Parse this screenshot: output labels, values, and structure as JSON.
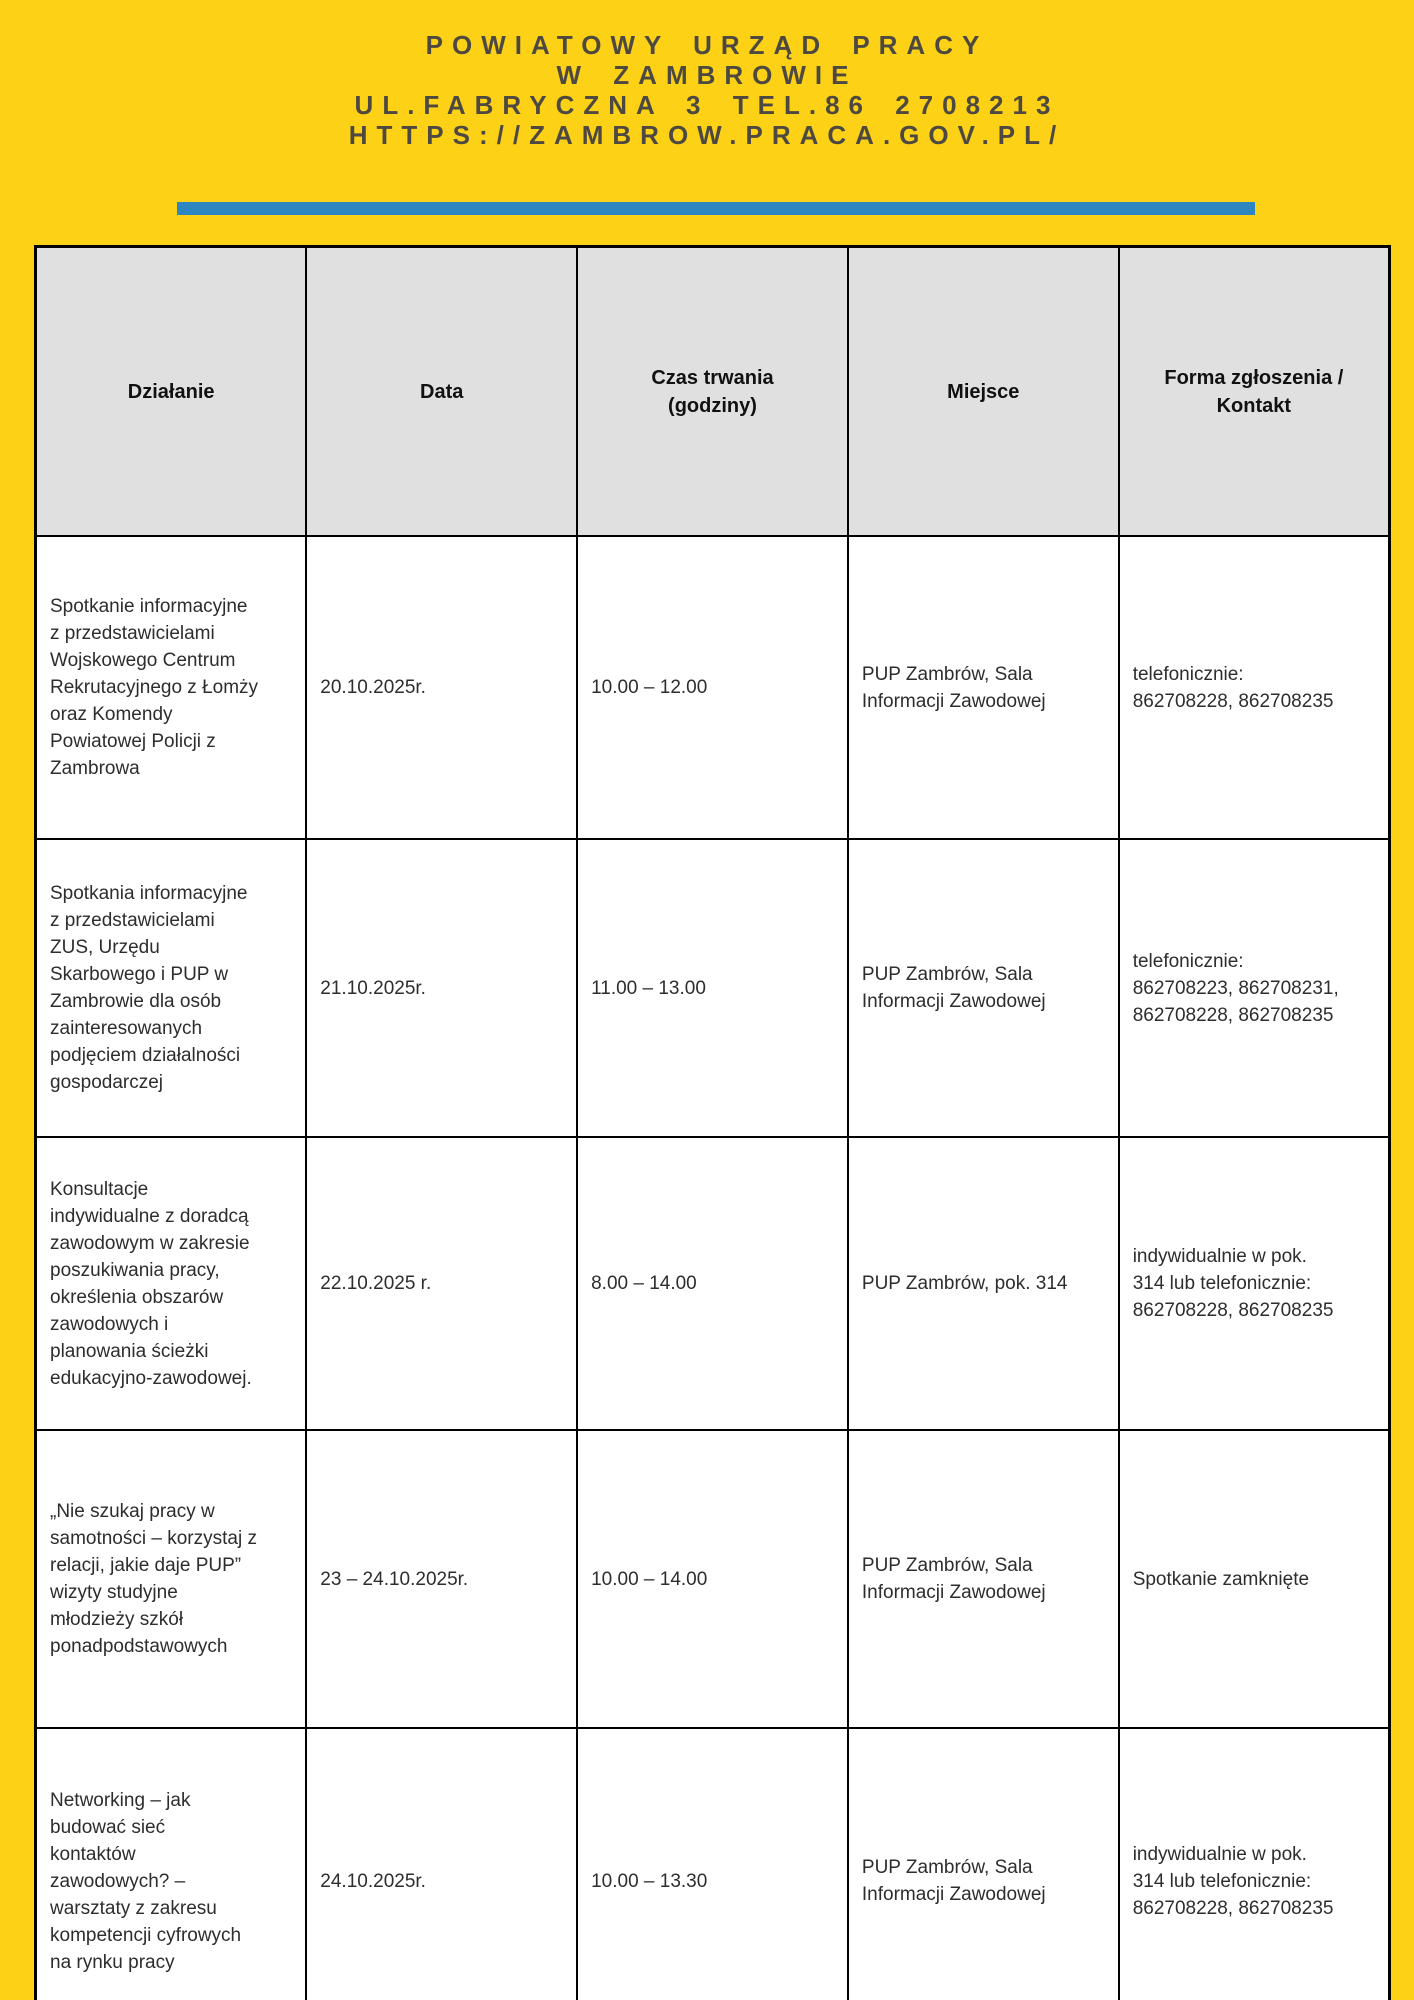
{
  "org": {
    "line1": "POWIATOWY URZĄD PRACY",
    "line2": "W ZAMBROWIE",
    "line3": "UL.FABRYCZNA 3 TEL.86 2708213",
    "line4": "HTTPS://ZAMBROW.PRACA.GOV.PL/"
  },
  "colors": {
    "background": "#FCD116",
    "accent_bar": "#2E86C1",
    "table_header_bg": "#E0E0E0",
    "border": "#000000",
    "org_text": "#4D4941",
    "body_text": "#2D2D2D"
  },
  "table": {
    "columns": [
      "Działanie",
      "Data",
      "Czas trwania\n(godziny)",
      "Miejsce",
      "Forma zgłoszenia /\nKontakt"
    ],
    "rows": [
      [
        "Spotkanie informacyjne\nz przedstawicielami\nWojskowego Centrum\nRekrutacyjnego z Łomży\noraz Komendy\nPowiatowej Policji z\nZambrowa",
        "20.10.2025r.",
        "10.00 – 12.00",
        "PUP Zambrów, Sala\nInformacji Zawodowej",
        "telefonicznie:\n862708228, 862708235"
      ],
      [
        "Spotkania informacyjne\nz przedstawicielami\nZUS, Urzędu\nSkarbowego i PUP w\nZambrowie dla osób\nzainteresowanych\npodjęciem działalności\ngospodarczej",
        "21.10.2025r.",
        "11.00 – 13.00",
        "PUP Zambrów, Sala\nInformacji Zawodowej",
        "telefonicznie:\n862708223, 862708231,\n862708228, 862708235"
      ],
      [
        "Konsultacje\nindywidualne z doradcą\nzawodowym w zakresie\nposzukiwania pracy,\nokreślenia obszarów\nzawodowych i\nplanowania ścieżki\nedukacyjno-zawodowej.",
        "22.10.2025 r.",
        "8.00 – 14.00",
        "PUP Zambrów, pok. 314",
        "indywidualnie w pok.\n314 lub telefonicznie:\n862708228, 862708235"
      ],
      [
        "„Nie szukaj pracy w\nsamotności – korzystaj z\nrelacji, jakie daje PUP”\nwizyty studyjne\nmłodzieży szkół\nponadpodstawowych",
        "23 – 24.10.2025r.",
        "10.00 – 14.00",
        "PUP Zambrów, Sala\nInformacji Zawodowej",
        "Spotkanie zamknięte"
      ],
      [
        "Networking – jak\nbudować sieć\nkontaktów\nzawodowych? –\nwarsztaty z zakresu\nkompetencji cyfrowych\nna rynku pracy",
        "24.10.2025r.",
        "10.00 – 13.30",
        "PUP Zambrów, Sala\nInformacji Zawodowej",
        "indywidualnie w pok.\n314 lub telefonicznie:\n862708228, 862708235"
      ]
    ]
  }
}
